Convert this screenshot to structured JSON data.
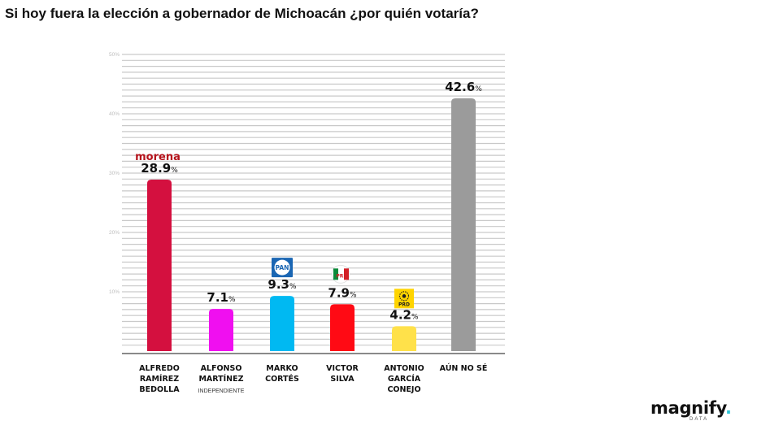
{
  "title": "Si hoy fuera la elección a gobernador de Michoacán ¿por quién votaría?",
  "brand": {
    "name": "magnify",
    "dot": ".",
    "sub": "DATA"
  },
  "chart_data": {
    "type": "bar",
    "title": "Si hoy fuera la elección a gobernador de Michoacán ¿por quién votaría?",
    "ylim": [
      0,
      50
    ],
    "yticks": [
      "10%",
      "20%",
      "30%",
      "40%",
      "50%"
    ],
    "grid": true,
    "categories": [
      {
        "lines": [
          "ALFREDO",
          "RAMÍREZ",
          "BEDOLLA"
        ],
        "sub": "",
        "party": "morena",
        "party_label": "morena"
      },
      {
        "lines": [
          "ALFONSO",
          "MARTÍNEZ"
        ],
        "sub": "INDEPENDIENTE",
        "party": "",
        "party_label": ""
      },
      {
        "lines": [
          "MARKO",
          "CORTÉS"
        ],
        "sub": "",
        "party": "pan",
        "party_label": "PAN"
      },
      {
        "lines": [
          "VICTOR",
          "SILVA"
        ],
        "sub": "",
        "party": "pri",
        "party_label": "PRI"
      },
      {
        "lines": [
          "ANTONIO",
          "GARCÍA",
          "CONEJO"
        ],
        "sub": "",
        "party": "prd",
        "party_label": "PRD"
      },
      {
        "lines": [
          "AÚN NO SÉ"
        ],
        "sub": "",
        "party": "",
        "party_label": ""
      }
    ],
    "values": [
      28.9,
      7.1,
      9.3,
      7.9,
      4.2,
      42.6
    ],
    "value_labels": [
      "28.9",
      "7.1",
      "9.3",
      "7.9",
      "4.2",
      "42.6"
    ],
    "unit": "%",
    "colors": [
      "#d4103f",
      "#f00ff0",
      "#00b9f2",
      "#ff0a14",
      "#ffe14a",
      "#9b9b9b"
    ],
    "party_colors": {
      "morena": "#b5121b",
      "pan": "#1a66b3",
      "pri_green": "#0a8a3a",
      "pri_red": "#d31f26",
      "prd": "#ffd400"
    }
  }
}
